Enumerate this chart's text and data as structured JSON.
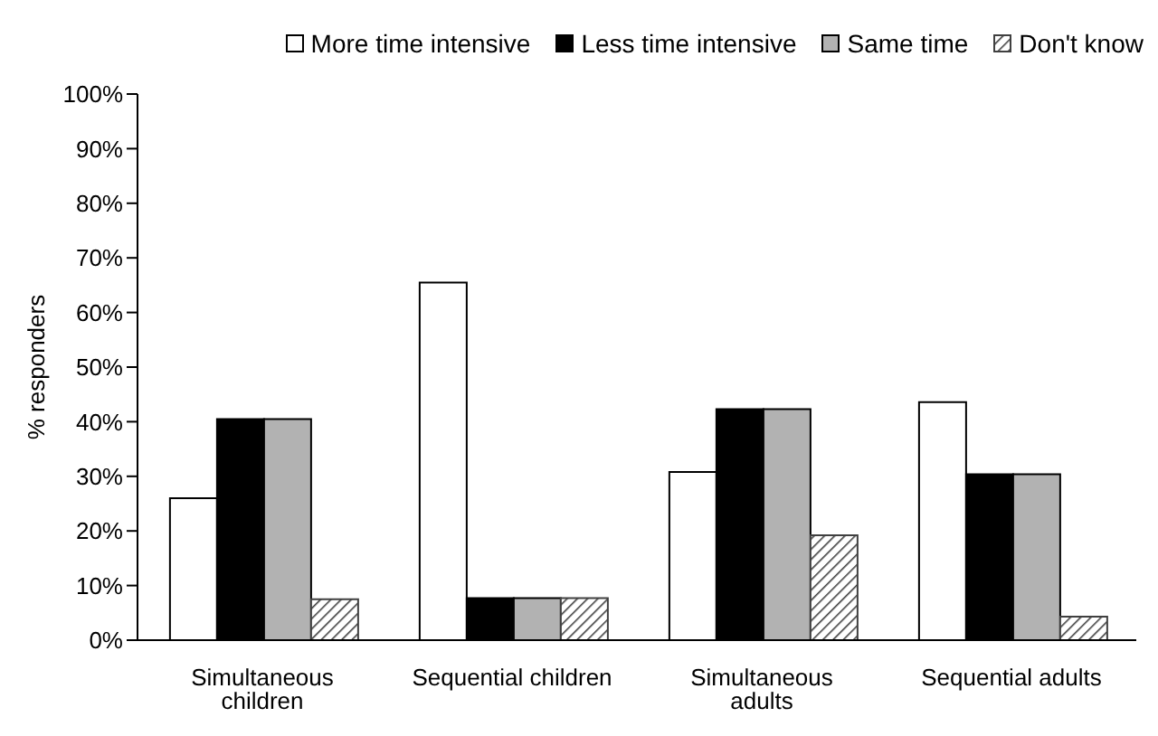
{
  "chart_data": {
    "type": "bar",
    "categories": [
      "Simultaneous children",
      "Sequential children",
      "Simultaneous adults",
      "Sequential adults"
    ],
    "series": [
      {
        "name": "More time intensive",
        "color": "#ffffff",
        "values": [
          26,
          65.5,
          30.8,
          43.6
        ]
      },
      {
        "name": "Less time intensive",
        "color": "#000000",
        "values": [
          40.5,
          7.7,
          42.3,
          30.4
        ]
      },
      {
        "name": "Same time",
        "color": "#b2b2b2",
        "values": [
          40.5,
          7.7,
          42.3,
          30.4
        ]
      },
      {
        "name": "Don't know",
        "color": "#404040",
        "values": [
          7.5,
          7.7,
          19.2,
          4.3
        ]
      }
    ],
    "ylabel": "% responders",
    "ylim": [
      0,
      100
    ],
    "yticks": [
      {
        "value": 0,
        "label": "0%"
      },
      {
        "value": 10,
        "label": "10%"
      },
      {
        "value": 20,
        "label": "20%"
      },
      {
        "value": 30,
        "label": "30%"
      },
      {
        "value": 40,
        "label": "40%"
      },
      {
        "value": 50,
        "label": "50%"
      },
      {
        "value": 60,
        "label": "60%"
      },
      {
        "value": 70,
        "label": "70%"
      },
      {
        "value": 80,
        "label": "80%"
      },
      {
        "value": 90,
        "label": "90%"
      },
      {
        "value": 100,
        "label": "100%"
      }
    ],
    "grid": false,
    "legend": "top right"
  }
}
